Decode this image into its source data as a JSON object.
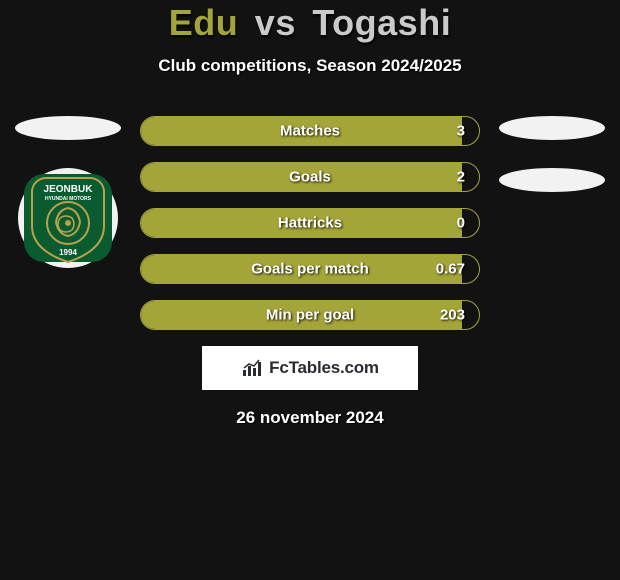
{
  "title": {
    "player1": "Edu",
    "vs": "vs",
    "player2": "Togashi"
  },
  "subtitle": "Club competitions, Season 2024/2025",
  "colors": {
    "primary": "#a3a538",
    "secondary": "#cacaca",
    "bar_fill": "#a3a538",
    "bar_border": "#a3a538",
    "background": "#121212"
  },
  "club_badge": {
    "name": "JEONBUK",
    "sub": "HYUNDAI MOTORS",
    "year": "1994",
    "bg_color": "#f2f2f2",
    "inner_color": "#0a5b2f",
    "accent_color": "#b9a24a"
  },
  "stats": [
    {
      "label": "Matches",
      "value": "3",
      "fill_pct": 95
    },
    {
      "label": "Goals",
      "value": "2",
      "fill_pct": 95
    },
    {
      "label": "Hattricks",
      "value": "0",
      "fill_pct": 95
    },
    {
      "label": "Goals per match",
      "value": "0.67",
      "fill_pct": 95
    },
    {
      "label": "Min per goal",
      "value": "203",
      "fill_pct": 95
    }
  ],
  "site_logo": "FcTables.com",
  "date": "26 november 2024"
}
